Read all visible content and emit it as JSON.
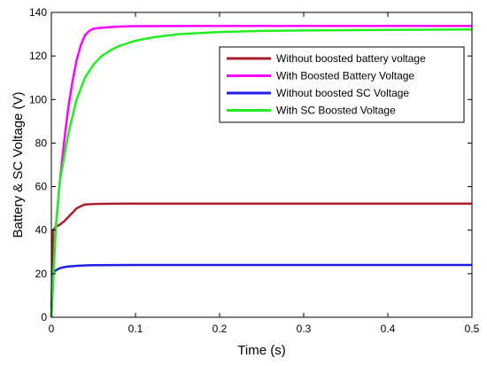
{
  "chart_data": {
    "type": "line",
    "title": "",
    "xlabel": "Time (s)",
    "ylabel": "Battery & SC Voltage (V)",
    "xlim": [
      0,
      0.5
    ],
    "ylim": [
      0,
      140
    ],
    "xticks": [
      0,
      0.1,
      0.2,
      0.3,
      0.4,
      0.5
    ],
    "xtick_labels": [
      "0",
      "0.1",
      "0.2",
      "0.3",
      "0.4",
      "0.5"
    ],
    "yticks": [
      0,
      20,
      40,
      60,
      80,
      100,
      120,
      140
    ],
    "ytick_labels": [
      "0",
      "20",
      "40",
      "60",
      "80",
      "100",
      "120",
      "140"
    ],
    "grid": false,
    "legend_position": "top-right",
    "series": [
      {
        "name": "Without boosted battery voltage",
        "color": "#a8202e",
        "x": [
          0,
          0.002,
          0.005,
          0.01,
          0.015,
          0.02,
          0.025,
          0.03,
          0.035,
          0.04,
          0.05,
          0.06,
          0.1,
          0.2,
          0.3,
          0.4,
          0.5
        ],
        "y": [
          0,
          40,
          41.5,
          42.5,
          44,
          46,
          48,
          50,
          51,
          51.8,
          52,
          52.1,
          52.2,
          52.2,
          52.2,
          52.2,
          52.2
        ]
      },
      {
        "name": "With Boosted  Battery Voltage",
        "color": "#ff00ff",
        "x": [
          0,
          0.005,
          0.01,
          0.015,
          0.02,
          0.025,
          0.03,
          0.035,
          0.04,
          0.045,
          0.05,
          0.06,
          0.08,
          0.1,
          0.2,
          0.3,
          0.4,
          0.5
        ],
        "y": [
          0,
          40,
          62,
          80,
          96,
          108,
          118,
          125,
          129.5,
          131.5,
          132.5,
          133,
          133.5,
          133.7,
          133.8,
          133.8,
          133.8,
          133.8
        ]
      },
      {
        "name": "Without boosted SC Voltage",
        "color": "#1e1ee6",
        "x": [
          0,
          0.002,
          0.005,
          0.01,
          0.015,
          0.02,
          0.03,
          0.04,
          0.05,
          0.1,
          0.2,
          0.3,
          0.4,
          0.5
        ],
        "y": [
          0,
          20.5,
          21.5,
          22.5,
          23,
          23.3,
          23.6,
          23.8,
          23.9,
          24,
          24,
          24,
          24,
          24
        ]
      },
      {
        "name": "With SC Boosted Voltage",
        "color": "#22ee22",
        "x": [
          0,
          0.005,
          0.01,
          0.02,
          0.03,
          0.04,
          0.05,
          0.06,
          0.07,
          0.08,
          0.1,
          0.12,
          0.15,
          0.2,
          0.25,
          0.3,
          0.4,
          0.5
        ],
        "y": [
          0,
          40,
          62,
          84,
          100,
          110,
          116,
          120,
          122.5,
          124.5,
          127,
          128.5,
          130,
          131,
          131.5,
          131.7,
          132,
          132.2
        ]
      }
    ]
  }
}
